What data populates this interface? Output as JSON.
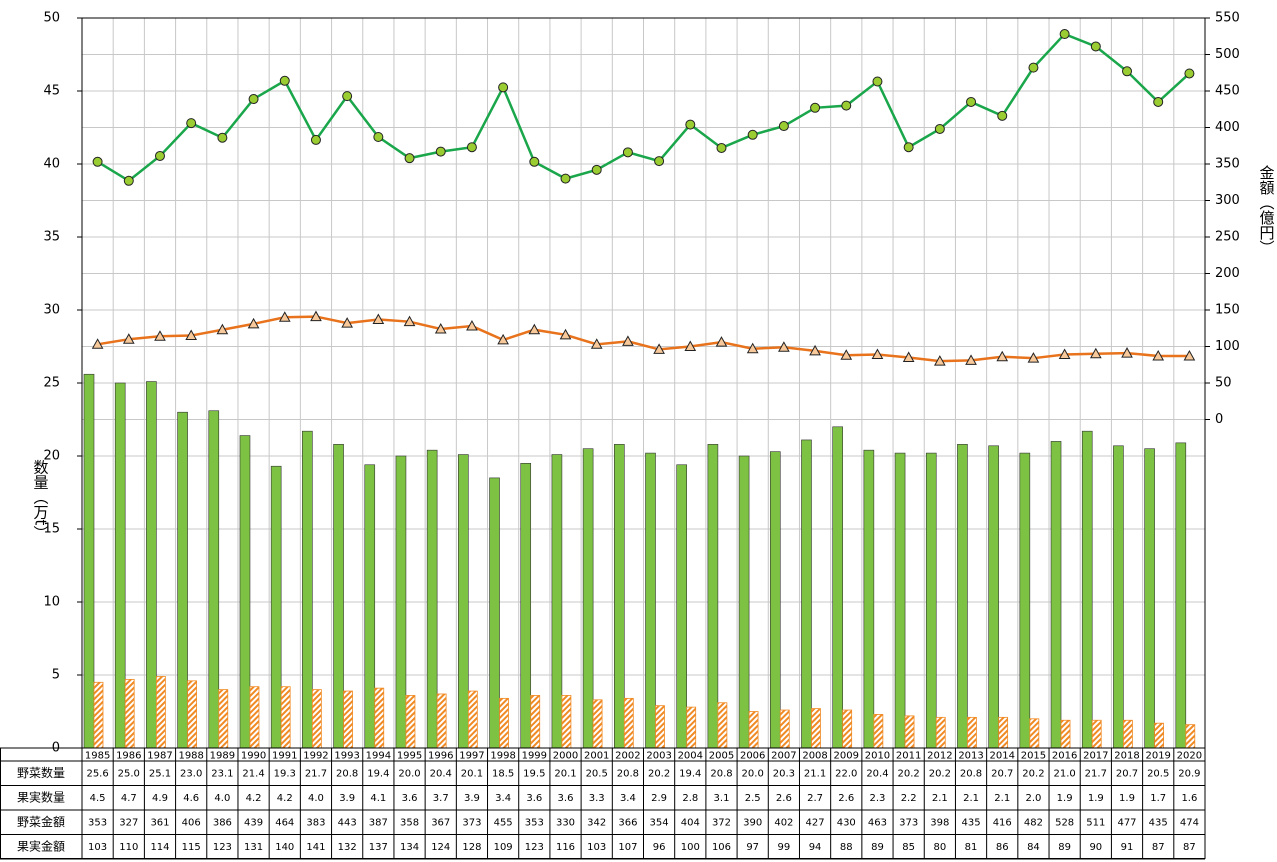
{
  "chart_data": {
    "type": "bar-line",
    "ylabel": "数量（万t）",
    "y2label": "金額（億円）",
    "categories": [
      "1985",
      "1986",
      "1987",
      "1988",
      "1989",
      "1990",
      "1991",
      "1992",
      "1993",
      "1994",
      "1995",
      "1996",
      "1997",
      "1998",
      "1999",
      "2000",
      "2001",
      "2002",
      "2003",
      "2004",
      "2005",
      "2006",
      "2007",
      "2008",
      "2009",
      "2010",
      "2011",
      "2012",
      "2013",
      "2014",
      "2015",
      "2016",
      "2017",
      "2018",
      "2019",
      "2020"
    ],
    "ylim": [
      0,
      50
    ],
    "yticks": [
      0,
      5,
      10,
      15,
      20,
      25,
      30,
      35,
      40,
      45,
      50
    ],
    "y2lim": [
      -450,
      550
    ],
    "y2ticks": [
      0,
      50,
      100,
      150,
      200,
      250,
      300,
      350,
      400,
      450,
      500,
      550
    ],
    "grid": true,
    "series": [
      {
        "name": "野菜数量",
        "type": "bar",
        "color": "#7dc242",
        "values": [
          25.6,
          25.0,
          25.1,
          23.0,
          23.1,
          21.4,
          19.3,
          21.7,
          20.8,
          19.4,
          20.0,
          20.4,
          20.1,
          18.5,
          19.5,
          20.1,
          20.5,
          20.8,
          20.2,
          19.4,
          20.8,
          20.0,
          20.3,
          21.1,
          22.0,
          20.4,
          20.2,
          20.2,
          20.8,
          20.7,
          20.2,
          21.0,
          21.7,
          20.7,
          20.5,
          20.9
        ],
        "value_labels": [
          "25.6",
          "25.0",
          "25.1",
          "23.0",
          "23.1",
          "21.4",
          "19.3",
          "21.7",
          "20.8",
          "19.4",
          "20.0",
          "20.4",
          "20.1",
          "18.5",
          "19.5",
          "20.1",
          "20.5",
          "20.8",
          "20.2",
          "19.4",
          "20.8",
          "20.0",
          "20.3",
          "21.1",
          "22.0",
          "20.4",
          "20.2",
          "20.2",
          "20.8",
          "20.7",
          "20.2",
          "21.0",
          "21.7",
          "20.7",
          "20.5",
          "20.9"
        ]
      },
      {
        "name": "果実数量",
        "type": "hatched-bar",
        "color": "#f08a24",
        "values": [
          4.5,
          4.7,
          4.9,
          4.6,
          4.0,
          4.2,
          4.2,
          4.0,
          3.9,
          4.1,
          3.6,
          3.7,
          3.9,
          3.4,
          3.6,
          3.6,
          3.3,
          3.4,
          2.9,
          2.8,
          3.1,
          2.5,
          2.6,
          2.7,
          2.6,
          2.3,
          2.2,
          2.1,
          2.1,
          2.1,
          2.0,
          1.9,
          1.9,
          1.9,
          1.7,
          1.6
        ],
        "value_labels": [
          "4.5",
          "4.7",
          "4.9",
          "4.6",
          "4.0",
          "4.2",
          "4.2",
          "4.0",
          "3.9",
          "4.1",
          "3.6",
          "3.7",
          "3.9",
          "3.4",
          "3.6",
          "3.6",
          "3.3",
          "3.4",
          "2.9",
          "2.8",
          "3.1",
          "2.5",
          "2.6",
          "2.7",
          "2.6",
          "2.3",
          "2.2",
          "2.1",
          "2.1",
          "2.1",
          "2.0",
          "1.9",
          "1.9",
          "1.9",
          "1.7",
          "1.6"
        ]
      },
      {
        "name": "野菜金額",
        "type": "line",
        "axis": "y2",
        "color": "#1aa64a",
        "marker": "circle",
        "marker_color": "#9acd32",
        "values": [
          353,
          327,
          361,
          406,
          386,
          439,
          464,
          383,
          443,
          387,
          358,
          367,
          373,
          455,
          353,
          330,
          342,
          366,
          354,
          404,
          372,
          390,
          402,
          427,
          430,
          463,
          373,
          398,
          435,
          416,
          482,
          528,
          511,
          477,
          435,
          474
        ]
      },
      {
        "name": "果実金額",
        "type": "line",
        "axis": "y2",
        "color": "#e8731c",
        "marker": "triangle",
        "marker_color": "#f8c99a",
        "values": [
          103,
          110,
          114,
          115,
          123,
          131,
          140,
          141,
          132,
          137,
          134,
          124,
          128,
          109,
          123,
          116,
          103,
          107,
          96,
          100,
          106,
          97,
          99,
          94,
          88,
          89,
          85,
          80,
          81,
          86,
          84,
          89,
          90,
          91,
          87,
          87
        ]
      }
    ]
  }
}
